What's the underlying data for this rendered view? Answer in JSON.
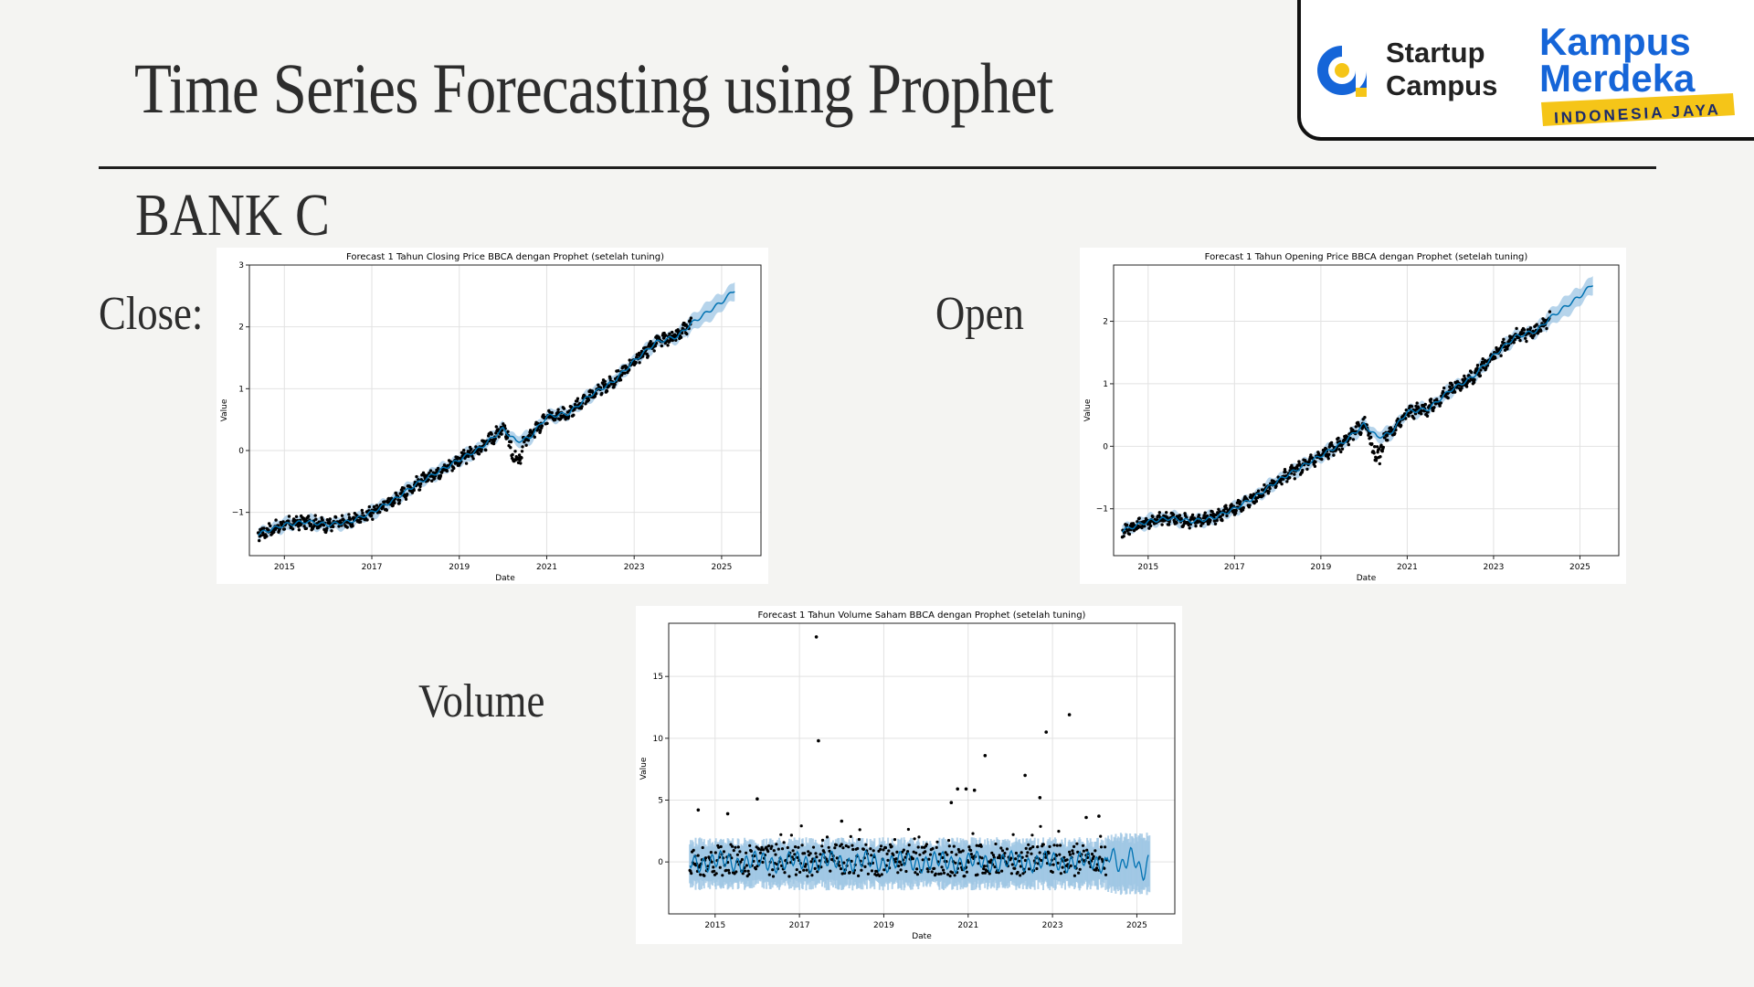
{
  "slide": {
    "title": "Time Series Forecasting using Prophet",
    "subtitle": "BANK C",
    "labels": {
      "close": "Close:",
      "open": "Open",
      "volume": "Volume"
    }
  },
  "logos": {
    "startup_campus": {
      "line1": "Startup",
      "line2": "Campus"
    },
    "kampus_merdeka": {
      "line1": "Kampus",
      "line2": "Merdeka",
      "tagline": "INDONESIA JAYA"
    }
  },
  "colors": {
    "forecast_line": "#0072b2",
    "uncertainty_band": "#9dc6e4",
    "observed_points": "#000000",
    "logo_blue": "#1565d8",
    "logo_yellow": "#f5c518"
  },
  "chart_data": [
    {
      "type": "line",
      "title": "Forecast 1 Tahun Closing Price BBCA dengan Prophet (setelah tuning)",
      "xlabel": "Date",
      "ylabel": "Value",
      "xlim": [
        2014.2,
        2025.9
      ],
      "ylim": [
        -1.7,
        3.0
      ],
      "xticks": [
        "2015",
        "2017",
        "2019",
        "2021",
        "2023",
        "2025"
      ],
      "yticks": [
        "−1",
        "0",
        "1",
        "2",
        "3"
      ],
      "grid": true,
      "series": [
        {
          "x": [
            2014.4,
            2015.0,
            2015.5,
            2016.0,
            2016.5,
            2017.0,
            2017.5,
            2018.0,
            2018.5,
            2019.0,
            2019.5,
            2020.0,
            2020.3,
            2020.6,
            2021.0,
            2021.5,
            2022.0,
            2022.5,
            2023.0,
            2023.5,
            2024.0,
            2024.3,
            2024.6,
            2025.0,
            2025.3
          ],
          "y": [
            -1.35,
            -1.2,
            -1.15,
            -1.2,
            -1.15,
            -1.0,
            -0.8,
            -0.55,
            -0.35,
            -0.15,
            0.05,
            0.35,
            0.15,
            0.2,
            0.55,
            0.6,
            0.9,
            1.1,
            1.45,
            1.75,
            1.85,
            2.05,
            2.2,
            2.4,
            2.6
          ]
        }
      ]
    },
    {
      "type": "line",
      "title": "Forecast 1 Tahun Opening Price BBCA dengan Prophet (setelah tuning)",
      "xlabel": "Date",
      "ylabel": "Value",
      "xlim": [
        2014.2,
        2025.9
      ],
      "ylim": [
        -1.75,
        2.9
      ],
      "xticks": [
        "2015",
        "2017",
        "2019",
        "2021",
        "2023",
        "2025"
      ],
      "yticks": [
        "−1",
        "0",
        "1",
        "2"
      ],
      "grid": true,
      "series": [
        {
          "x": [
            2014.4,
            2015.0,
            2015.5,
            2016.0,
            2016.5,
            2017.0,
            2017.5,
            2018.0,
            2018.5,
            2019.0,
            2019.5,
            2020.0,
            2020.3,
            2020.6,
            2021.0,
            2021.5,
            2022.0,
            2022.5,
            2023.0,
            2023.5,
            2024.0,
            2024.3,
            2024.6,
            2025.0,
            2025.3
          ],
          "y": [
            -1.35,
            -1.2,
            -1.15,
            -1.2,
            -1.15,
            -1.0,
            -0.8,
            -0.55,
            -0.35,
            -0.15,
            0.05,
            0.35,
            0.15,
            0.2,
            0.55,
            0.6,
            0.9,
            1.1,
            1.45,
            1.75,
            1.85,
            2.05,
            2.2,
            2.4,
            2.6
          ]
        }
      ]
    },
    {
      "type": "scatter",
      "title": "Forecast 1 Tahun Volume Saham BBCA dengan Prophet (setelah tuning)",
      "xlabel": "Date",
      "ylabel": "Value",
      "xlim": [
        2013.9,
        2025.9
      ],
      "ylim": [
        -4.2,
        19.3
      ],
      "xticks": [
        "2015",
        "2017",
        "2019",
        "2021",
        "2023",
        "2025"
      ],
      "yticks": [
        "0",
        "5",
        "10",
        "15"
      ],
      "grid": true,
      "series": [
        {
          "x": [
            2017.4,
            2017.45,
            2022.85,
            2023.4,
            2021.4,
            2022.35,
            2022.7,
            2020.75,
            2020.95,
            2021.15,
            2020.6,
            2014.6,
            2015.3,
            2016.0,
            2018.0,
            2024.1,
            2023.8
          ],
          "y": [
            18.2,
            9.8,
            10.5,
            11.9,
            8.6,
            7.0,
            5.2,
            5.9,
            5.9,
            5.8,
            4.8,
            4.2,
            3.9,
            5.1,
            3.3,
            3.7,
            3.6
          ]
        }
      ]
    }
  ]
}
